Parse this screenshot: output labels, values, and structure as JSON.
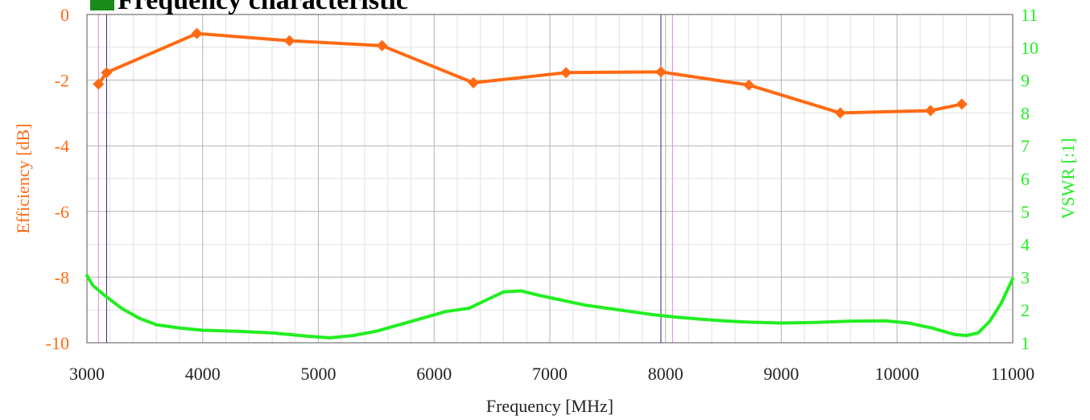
{
  "chart_data": {
    "type": "line",
    "title": "Frequency characteristic",
    "title_marker_color": "#1a8c1a",
    "xlabel": "Frequency [MHz]",
    "ylabel_left": "Efficiency [dB]",
    "ylabel_right": "VSWR [:1]",
    "xlim": [
      3000,
      11000
    ],
    "ylim_left": [
      -10,
      0
    ],
    "ylim_right": [
      1,
      11
    ],
    "x_ticks": [
      "3000",
      "4000",
      "5000",
      "6000",
      "7000",
      "8000",
      "9000",
      "10000",
      "11000"
    ],
    "y_ticks_left": [
      "0",
      "-2",
      "-4",
      "-6",
      "-8",
      "-10"
    ],
    "y_ticks_right": [
      "11",
      "10",
      "9",
      "8",
      "7",
      "6",
      "5",
      "4",
      "3",
      "2",
      "1"
    ],
    "grid": true,
    "colors": {
      "efficiency": "#ff6a13",
      "vswr": "#22ee22",
      "marker_navy": "#2b2b7a",
      "marker_pink": "#e08ae0"
    },
    "vertical_markers": [
      {
        "x": 3100,
        "color": "pink"
      },
      {
        "x": 3170,
        "color": "navy"
      },
      {
        "x": 7960,
        "color": "navy"
      },
      {
        "x": 8060,
        "color": "pink"
      }
    ],
    "series": [
      {
        "axis": "left",
        "markers": "diamond",
        "x": [
          3100,
          3170,
          3950,
          4750,
          5550,
          6340,
          7140,
          7960,
          8720,
          9510,
          10290,
          10560
        ],
        "values": [
          -2.12,
          -1.77,
          -0.58,
          -0.8,
          -0.95,
          -2.08,
          -1.77,
          -1.75,
          -2.15,
          -3.0,
          -2.93,
          -2.73
        ]
      },
      {
        "axis": "right",
        "x": [
          3000,
          3050,
          3150,
          3300,
          3450,
          3600,
          3800,
          4000,
          4300,
          4600,
          4900,
          5100,
          5300,
          5500,
          5700,
          5900,
          6100,
          6300,
          6450,
          6600,
          6750,
          6900,
          7100,
          7300,
          7500,
          7700,
          7900,
          8100,
          8300,
          8500,
          8700,
          9000,
          9300,
          9600,
          9900,
          10100,
          10300,
          10500,
          10600,
          10700,
          10800,
          10900,
          11000
        ],
        "values": [
          3.05,
          2.75,
          2.45,
          2.05,
          1.75,
          1.55,
          1.45,
          1.38,
          1.35,
          1.3,
          1.2,
          1.15,
          1.22,
          1.35,
          1.55,
          1.75,
          1.95,
          2.05,
          2.3,
          2.55,
          2.58,
          2.45,
          2.3,
          2.15,
          2.05,
          1.95,
          1.85,
          1.78,
          1.72,
          1.67,
          1.63,
          1.6,
          1.62,
          1.66,
          1.67,
          1.6,
          1.45,
          1.25,
          1.22,
          1.3,
          1.65,
          2.2,
          2.95
        ]
      }
    ]
  }
}
